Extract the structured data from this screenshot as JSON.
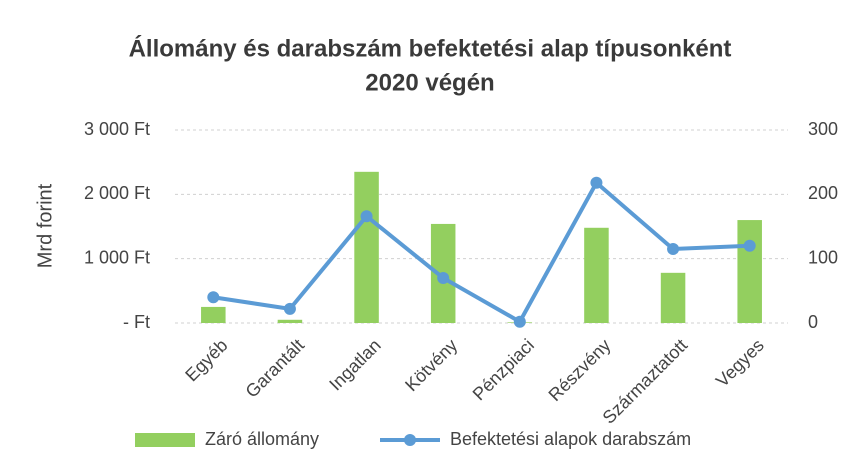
{
  "chart_data": {
    "type": "bar-line",
    "title": "Állomány és darabszám befektetési alap típusonként",
    "subtitle": "2020 végén",
    "y_label": "Mrd forint",
    "categories": [
      "Egyéb",
      "Garantált",
      "Ingatlan",
      "Kötvény",
      "Pénzpiaci",
      "Részvény",
      "Származtatott",
      "Vegyes"
    ],
    "series": [
      {
        "name": "Záró állomány",
        "color": "#93cf5f",
        "kind": "bar",
        "values": [
          250,
          50,
          2350,
          1540,
          10,
          1480,
          780,
          1600
        ]
      },
      {
        "name": "Befektetési alapok darabszám",
        "color": "#5b9bd5",
        "kind": "line",
        "axis": "y2",
        "values": [
          40,
          22,
          166,
          70,
          2,
          218,
          115,
          120
        ]
      }
    ],
    "ylim": [
      0,
      3000
    ],
    "yticks": [
      {
        "value": 0,
        "label": "-   Ft"
      },
      {
        "value": 1000,
        "label": "1 000 Ft"
      },
      {
        "value": 2000,
        "label": "2 000 Ft"
      },
      {
        "value": 3000,
        "label": "3 000 Ft"
      }
    ],
    "y2lim": [
      0,
      300
    ],
    "y2ticks": [
      0,
      100,
      200,
      300
    ],
    "grid": true,
    "legend": "bottom"
  }
}
